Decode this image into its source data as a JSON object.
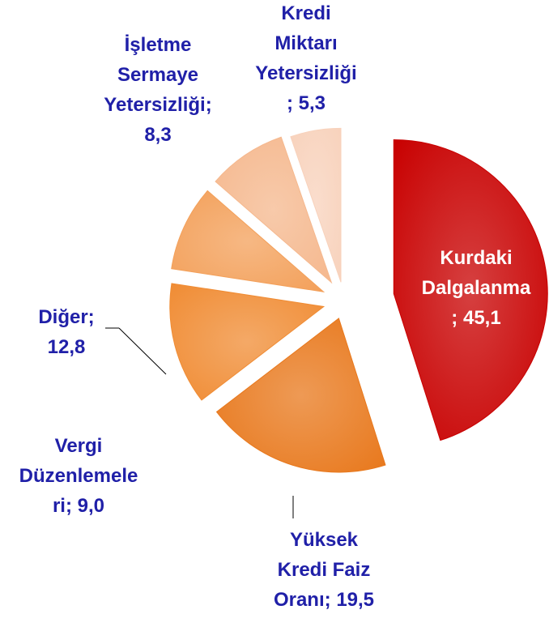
{
  "chart_data": {
    "type": "pie",
    "categories": [
      "Kurdaki Dalgalanma",
      "Yüksek Kredi Faiz Oranı",
      "Diğer",
      "Vergi Düzenlemeleri",
      "İşletme Sermaye Yetersizliği",
      "Kredi Miktarı Yetersizliği"
    ],
    "values": [
      45.1,
      19.5,
      12.8,
      9.0,
      8.3,
      5.3
    ],
    "value_labels": [
      "45,1",
      "19,5",
      "12,8",
      "9,0",
      "8,3",
      "5,3"
    ],
    "label_separator": "; ",
    "colors": [
      "#c80000",
      "#e8781c",
      "#f08c34",
      "#f3a05a",
      "#f5b88e",
      "#f8d2bc"
    ]
  }
}
